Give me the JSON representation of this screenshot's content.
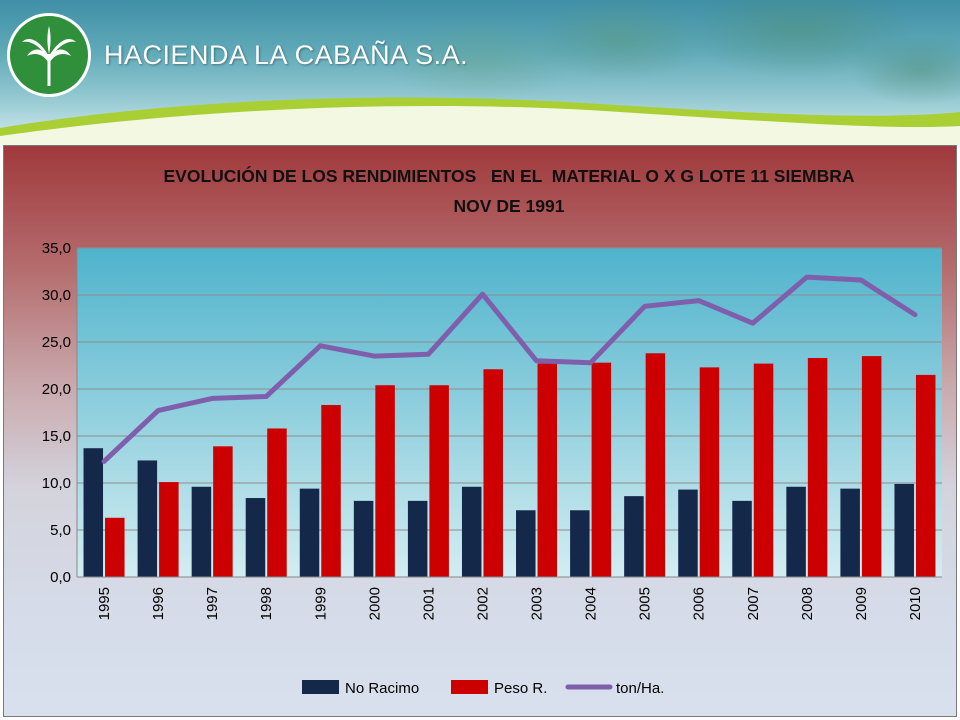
{
  "header": {
    "company_name": "HACIENDA LA CABAÑA S.A."
  },
  "colors": {
    "no_racimo": "#14284a",
    "peso_r": "#cc0000",
    "ton_ha": "#7f5fab",
    "plot_top": "#4fb3cc",
    "plot_bottom": "#d3edf1"
  },
  "chart_data": {
    "type": "bar",
    "title_line1": "EVOLUCIÓN DE LOS RENDIMIENTOS   EN EL  MATERIAL O X G LOTE 11 SIEMBRA",
    "title_line2": "NOV DE 1991",
    "categories": [
      "1995",
      "1996",
      "1997",
      "1998",
      "1999",
      "2000",
      "2001",
      "2002",
      "2003",
      "2004",
      "2005",
      "2006",
      "2007",
      "2008",
      "2009",
      "2010"
    ],
    "series": [
      {
        "name": "No Racimo",
        "type": "bar",
        "values": [
          13.7,
          12.4,
          9.6,
          8.4,
          9.4,
          8.1,
          8.1,
          9.6,
          7.1,
          7.1,
          8.6,
          9.3,
          8.1,
          9.6,
          9.4,
          9.9
        ]
      },
      {
        "name": "Peso R.",
        "type": "bar",
        "values": [
          6.3,
          10.1,
          13.9,
          15.8,
          18.3,
          20.4,
          20.4,
          22.1,
          22.7,
          22.8,
          23.8,
          22.3,
          22.7,
          23.3,
          23.5,
          21.5
        ]
      },
      {
        "name": "ton/Ha.",
        "type": "line",
        "values": [
          12.3,
          17.7,
          19.0,
          19.2,
          24.6,
          23.5,
          23.7,
          30.1,
          23.0,
          22.8,
          28.8,
          29.4,
          27.0,
          31.9,
          31.6,
          27.9
        ]
      }
    ],
    "ylim": [
      0,
      35
    ],
    "yticks": [
      "0,0",
      "5,0",
      "10,0",
      "15,0",
      "20,0",
      "25,0",
      "30,0",
      "35,0"
    ],
    "legend_position": "bottom",
    "grid": true
  }
}
